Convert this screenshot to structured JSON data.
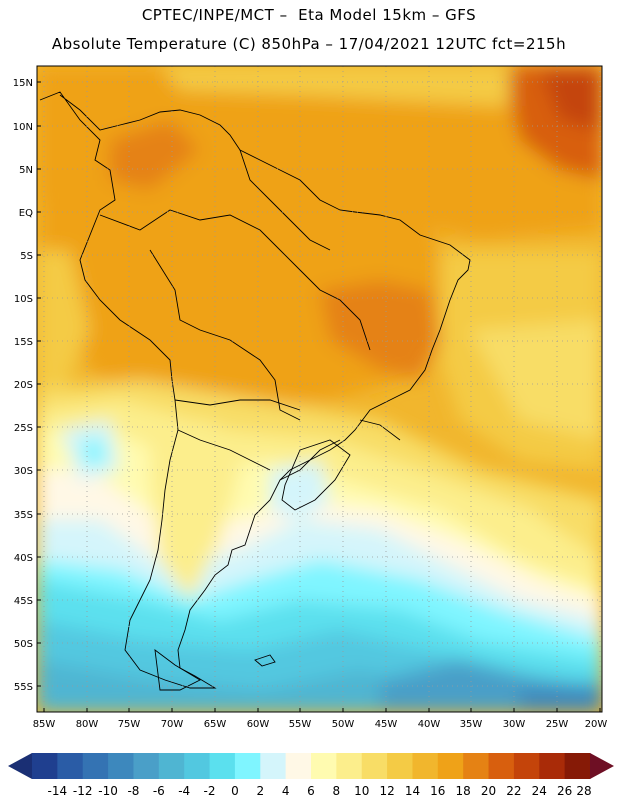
{
  "header": {
    "line1": "CPTEC/INPE/MCT –  Eta Model 15km – GFS",
    "line2": "Absolute Temperature (C) 850hPa – 17/04/2021 12UTC fct=215h"
  },
  "axes": {
    "lat_labels": [
      "15N",
      "10N",
      "5N",
      "EQ",
      "5S",
      "10S",
      "15S",
      "20S",
      "25S",
      "30S",
      "35S",
      "40S",
      "45S",
      "50S",
      "55S"
    ],
    "lon_labels": [
      "85W",
      "80W",
      "75W",
      "70W",
      "65W",
      "60W",
      "55W",
      "50W",
      "45W",
      "40W",
      "35W",
      "30W",
      "25W",
      "20W"
    ]
  },
  "colorbar": {
    "labels": [
      "-14",
      "-12",
      "-10",
      "-8",
      "-6",
      "-4",
      "-2",
      "0",
      "2",
      "4",
      "6",
      "8",
      "10",
      "12",
      "14",
      "16",
      "18",
      "20",
      "22",
      "24",
      "26",
      "28"
    ],
    "colors": [
      "#1f3f8f",
      "#2a5ca6",
      "#3473b3",
      "#3d88bd",
      "#4a9fc8",
      "#4fb5d2",
      "#52c8e0",
      "#5be0ee",
      "#7ff5ff",
      "#d4f5fb",
      "#fff8e6",
      "#fffbb0",
      "#fcee8c",
      "#f8dd66",
      "#f4cb45",
      "#f1b62d",
      "#efa218",
      "#e58214",
      "#d85f0e",
      "#c4440a",
      "#a92b08",
      "#861a06"
    ],
    "left_tip": "#1a2f74",
    "right_tip": "#6e0f24"
  }
}
